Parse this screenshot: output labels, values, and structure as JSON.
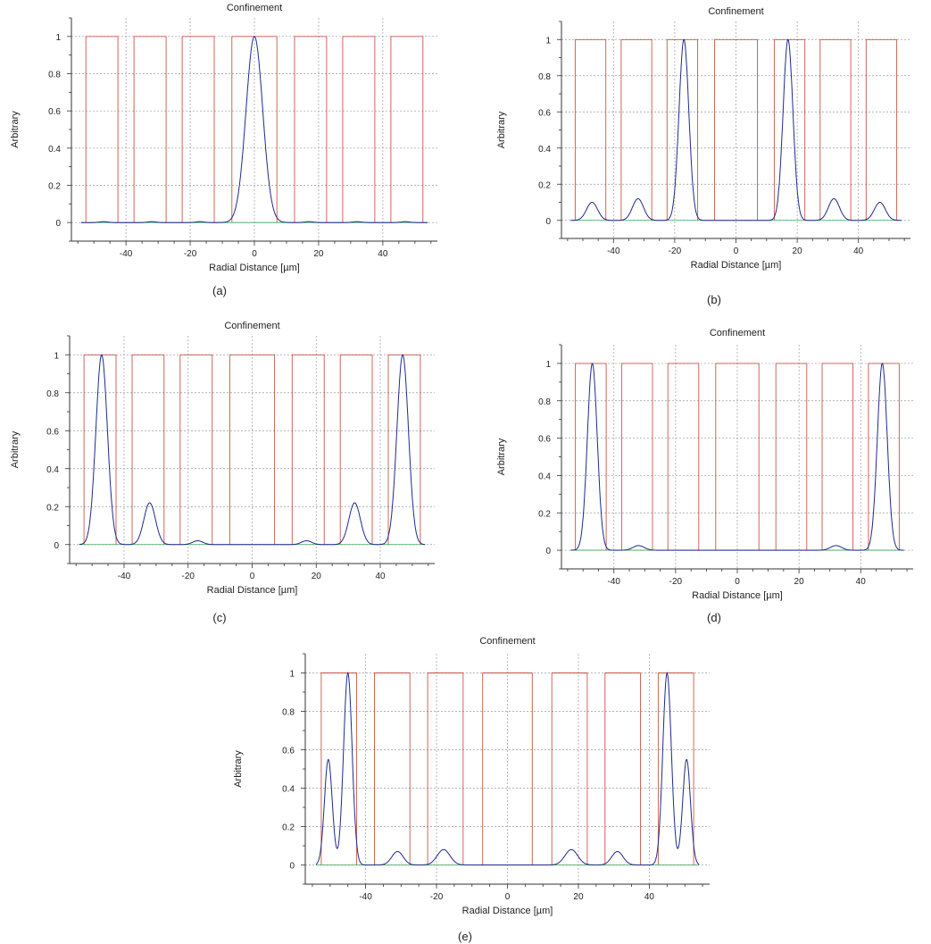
{
  "chart_data": [
    {
      "type": "line",
      "panel": "a",
      "caption": "(a)",
      "title": "Confinement",
      "xlabel": "Radial Distance [µm]",
      "ylabel": "Arbitrary",
      "xlim": [
        -57,
        57
      ],
      "ylim": [
        -0.1,
        1.1
      ],
      "xticks": [
        -40,
        -20,
        0,
        20,
        40
      ],
      "yticks": [
        0,
        0.2,
        0.4,
        0.6,
        0.8,
        1
      ],
      "grid": true,
      "series": [
        {
          "style": "rectangular cores",
          "rects": [
            [
              -52.5,
              -42.5
            ],
            [
              -37.5,
              -27.5
            ],
            [
              -22.5,
              -12.5
            ],
            [
              -7,
              7
            ],
            [
              12.5,
              22.5
            ],
            [
              27.5,
              37.5
            ],
            [
              42.5,
              52.5
            ]
          ],
          "height": 1,
          "color": "#c0392b"
        },
        {
          "style": "peaks",
          "peaks": [
            [
              0,
              1.0,
              2.6
            ],
            [
              -47,
              0.005,
              1.2
            ],
            [
              -32,
              0.005,
              1.2
            ],
            [
              -17,
              0.005,
              1.2
            ],
            [
              17,
              0.005,
              1.2
            ],
            [
              32,
              0.005,
              1.2
            ],
            [
              47,
              0.005,
              1.2
            ]
          ],
          "color": "#1f2a8c"
        }
      ]
    },
    {
      "type": "line",
      "panel": "b",
      "caption": "(b)",
      "title": "Confinement",
      "xlabel": "Radial Distance [µm]",
      "ylabel": "Arbitrary",
      "xlim": [
        -57,
        57
      ],
      "ylim": [
        -0.1,
        1.1
      ],
      "xticks": [
        -40,
        -20,
        0,
        20,
        40
      ],
      "yticks": [
        0,
        0.2,
        0.4,
        0.6,
        0.8,
        1
      ],
      "grid": true,
      "series": [
        {
          "style": "rectangular cores",
          "rects": [
            [
              -52.5,
              -42.5
            ],
            [
              -37.5,
              -27.5
            ],
            [
              -22.5,
              -12.5
            ],
            [
              -7,
              7
            ],
            [
              12.5,
              22.5
            ],
            [
              27.5,
              37.5
            ],
            [
              42.5,
              52.5
            ]
          ],
          "height": 1,
          "color": "#c0392b"
        },
        {
          "style": "peaks",
          "peaks": [
            [
              -17,
              1.0,
              1.6
            ],
            [
              17,
              1.0,
              1.6
            ],
            [
              -47,
              0.1,
              1.8
            ],
            [
              -32,
              0.12,
              1.8
            ],
            [
              32,
              0.12,
              1.8
            ],
            [
              47,
              0.1,
              1.8
            ]
          ],
          "color": "#1f2a8c"
        }
      ]
    },
    {
      "type": "line",
      "panel": "c",
      "caption": "(c)",
      "title": "Confinement",
      "xlabel": "Radial Distance [µm]",
      "ylabel": "Arbitrary",
      "xlim": [
        -57,
        57
      ],
      "ylim": [
        -0.1,
        1.1
      ],
      "xticks": [
        -40,
        -20,
        0,
        20,
        40
      ],
      "yticks": [
        0,
        0.2,
        0.4,
        0.6,
        0.8,
        1
      ],
      "grid": true,
      "series": [
        {
          "style": "rectangular cores",
          "rects": [
            [
              -52.5,
              -42.5
            ],
            [
              -37.5,
              -27.5
            ],
            [
              -22.5,
              -12.5
            ],
            [
              -7,
              7
            ],
            [
              12.5,
              22.5
            ],
            [
              27.5,
              37.5
            ],
            [
              42.5,
              52.5
            ]
          ],
          "height": 1,
          "color": "#c0392b"
        },
        {
          "style": "peaks",
          "peaks": [
            [
              -47,
              1.0,
              1.8
            ],
            [
              47,
              1.0,
              1.8
            ],
            [
              -32,
              0.22,
              1.8
            ],
            [
              32,
              0.22,
              1.8
            ],
            [
              -17,
              0.02,
              1.6
            ],
            [
              17,
              0.02,
              1.6
            ]
          ],
          "color": "#1f2a8c"
        }
      ]
    },
    {
      "type": "line",
      "panel": "d",
      "caption": "(d)",
      "title": "Confinement",
      "xlabel": "Radial Distance [µm]",
      "ylabel": "Arbitrary",
      "xlim": [
        -57,
        57
      ],
      "ylim": [
        -0.1,
        1.1
      ],
      "xticks": [
        -40,
        -20,
        0,
        20,
        40
      ],
      "yticks": [
        0,
        0.2,
        0.4,
        0.6,
        0.8,
        1
      ],
      "grid": true,
      "series": [
        {
          "style": "rectangular cores",
          "rects": [
            [
              -52.5,
              -42.5
            ],
            [
              -37.5,
              -27.5
            ],
            [
              -22.5,
              -12.5
            ],
            [
              -7,
              7
            ],
            [
              12.5,
              22.5
            ],
            [
              27.5,
              37.5
            ],
            [
              42.5,
              52.5
            ]
          ],
          "height": 1,
          "color": "#c0392b"
        },
        {
          "style": "peaks",
          "peaks": [
            [
              -47,
              1.0,
              1.6
            ],
            [
              47,
              1.0,
              1.6
            ],
            [
              -32,
              0.025,
              1.8
            ],
            [
              32,
              0.025,
              1.8
            ]
          ],
          "color": "#1f2a8c"
        }
      ]
    },
    {
      "type": "line",
      "panel": "e",
      "caption": "(e)",
      "title": "Confinement",
      "xlabel": "Radial Distance [µm]",
      "ylabel": "Arbitrary",
      "xlim": [
        -57,
        57
      ],
      "ylim": [
        -0.1,
        1.1
      ],
      "xticks": [
        -40,
        -20,
        0,
        20,
        40
      ],
      "yticks": [
        0,
        0.2,
        0.4,
        0.6,
        0.8,
        1
      ],
      "grid": true,
      "series": [
        {
          "style": "rectangular cores",
          "rects": [
            [
              -52.5,
              -42.5
            ],
            [
              -37.5,
              -27.5
            ],
            [
              -22.5,
              -12.5
            ],
            [
              -7,
              7
            ],
            [
              12.5,
              22.5
            ],
            [
              27.5,
              37.5
            ],
            [
              42.5,
              52.5
            ]
          ],
          "height": 1,
          "color": "#c0392b"
        },
        {
          "style": "peaks",
          "peaks": [
            [
              -45,
              1.0,
              1.2
            ],
            [
              45,
              1.0,
              1.2
            ],
            [
              -50.5,
              0.55,
              1.1
            ],
            [
              50.5,
              0.55,
              1.1
            ],
            [
              -31,
              0.07,
              1.6
            ],
            [
              31,
              0.07,
              1.6
            ],
            [
              -18,
              0.08,
              1.8
            ],
            [
              18,
              0.08,
              1.8
            ]
          ],
          "color": "#1f2a8c"
        }
      ]
    }
  ]
}
